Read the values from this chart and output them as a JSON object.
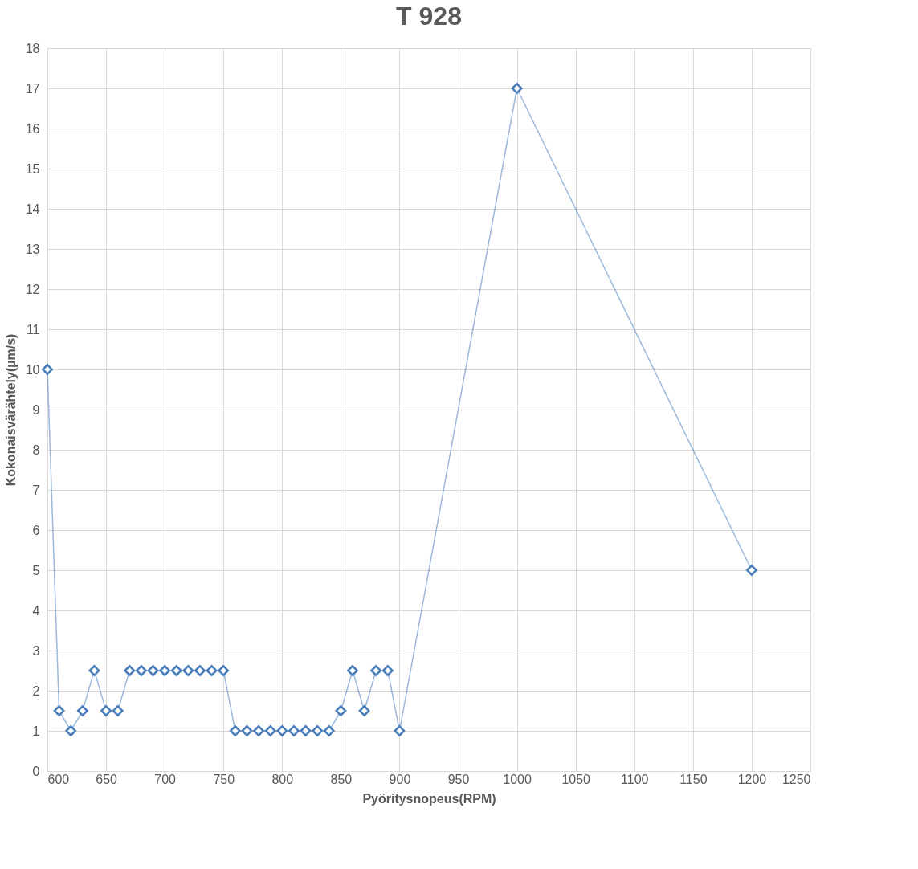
{
  "chart_data": {
    "type": "line",
    "title": "T 928",
    "xlabel": "Pyöritysnopeus(RPM)",
    "ylabel": "Kokonaisvärähtely(µm/s)",
    "x": [
      600,
      610,
      620,
      630,
      640,
      650,
      660,
      670,
      680,
      690,
      700,
      710,
      720,
      730,
      740,
      750,
      760,
      770,
      780,
      790,
      800,
      810,
      820,
      830,
      840,
      850,
      860,
      870,
      880,
      890,
      900,
      1000,
      1200
    ],
    "series": [
      {
        "color": "#4a7ebb",
        "values": [
          10,
          1.5,
          1,
          1.5,
          2.5,
          1.5,
          1.5,
          2.5,
          2.5,
          2.5,
          2.5,
          2.5,
          2.5,
          2.5,
          2.5,
          2.5,
          1,
          1,
          1,
          1,
          1,
          1,
          1,
          1,
          1,
          1.5,
          2.5,
          1.5,
          2.5,
          2.5,
          1,
          17,
          5
        ]
      }
    ],
    "xlim": [
      600,
      1250
    ],
    "xticks": [
      600,
      650,
      700,
      750,
      800,
      850,
      900,
      950,
      1000,
      1050,
      1100,
      1150,
      1200,
      1250
    ],
    "ylim": [
      0,
      18
    ],
    "yticks": [
      0,
      1,
      2,
      3,
      4,
      5,
      6,
      7,
      8,
      9,
      10,
      11,
      12,
      13,
      14,
      15,
      16,
      17,
      18
    ],
    "grid": true,
    "marker": "diamond",
    "line_style": "solid"
  }
}
